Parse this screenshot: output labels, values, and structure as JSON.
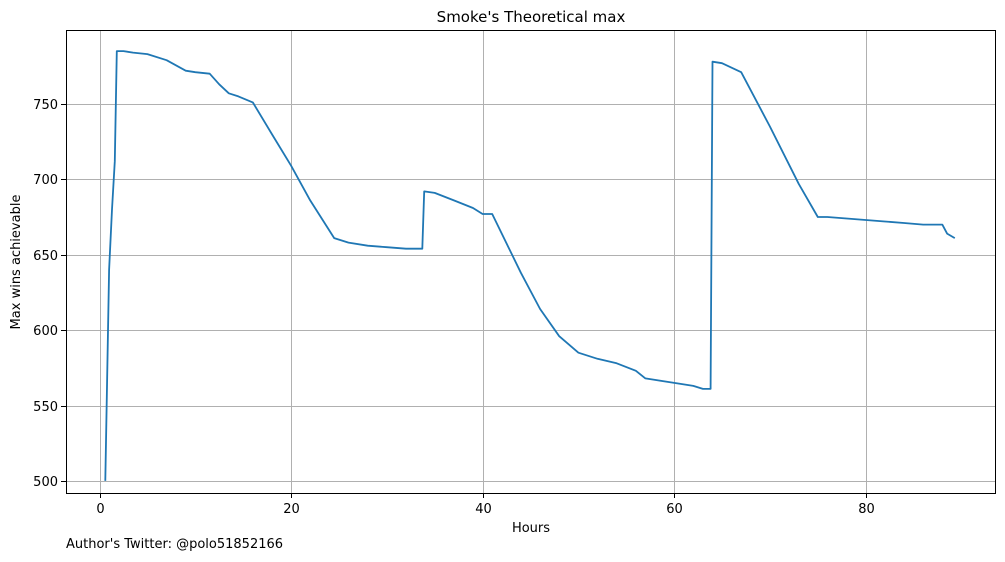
{
  "chart_data": {
    "type": "line",
    "title": "Smoke's Theoretical max",
    "xlabel": "Hours",
    "ylabel": "Max wins achievable",
    "xlim": [
      -3.5,
      93.5
    ],
    "ylim": [
      492,
      799
    ],
    "xticks": [
      0,
      20,
      40,
      60,
      80
    ],
    "yticks": [
      500,
      550,
      600,
      650,
      700,
      750
    ],
    "grid": true,
    "line_color": "#1f77b4",
    "grid_color": "#b0b0b0",
    "series": [
      {
        "points": [
          [
            0.6,
            500
          ],
          [
            1.0,
            640
          ],
          [
            1.3,
            680
          ],
          [
            1.6,
            712
          ],
          [
            1.8,
            785
          ],
          [
            2.5,
            785
          ],
          [
            3.5,
            784
          ],
          [
            5.0,
            783
          ],
          [
            7.0,
            779
          ],
          [
            9.0,
            772
          ],
          [
            10.0,
            771
          ],
          [
            11.5,
            770
          ],
          [
            12.5,
            763
          ],
          [
            13.5,
            757
          ],
          [
            14.5,
            755
          ],
          [
            16.0,
            751
          ],
          [
            18.0,
            730
          ],
          [
            20.0,
            709
          ],
          [
            22.0,
            686
          ],
          [
            24.5,
            661
          ],
          [
            26.0,
            658
          ],
          [
            28.0,
            656
          ],
          [
            30.0,
            655
          ],
          [
            32.0,
            654
          ],
          [
            33.7,
            654
          ],
          [
            33.9,
            692
          ],
          [
            35.0,
            691
          ],
          [
            37.0,
            686
          ],
          [
            39.0,
            681
          ],
          [
            40.0,
            677
          ],
          [
            41.0,
            677
          ],
          [
            44.0,
            638
          ],
          [
            46.0,
            614
          ],
          [
            48.0,
            596
          ],
          [
            50.0,
            585
          ],
          [
            52.0,
            581
          ],
          [
            54.0,
            578
          ],
          [
            56.0,
            573
          ],
          [
            57.0,
            568
          ],
          [
            58.0,
            567
          ],
          [
            60.0,
            565
          ],
          [
            62.0,
            563
          ],
          [
            63.0,
            561
          ],
          [
            63.8,
            561
          ],
          [
            64.0,
            778
          ],
          [
            65.0,
            777
          ],
          [
            67.0,
            771
          ],
          [
            70.0,
            735
          ],
          [
            73.0,
            697
          ],
          [
            75.0,
            675
          ],
          [
            76.0,
            675
          ],
          [
            78.0,
            674
          ],
          [
            80.0,
            673
          ],
          [
            82.0,
            672
          ],
          [
            84.0,
            671
          ],
          [
            86.0,
            670
          ],
          [
            88.0,
            670
          ],
          [
            88.5,
            664
          ],
          [
            89.3,
            661
          ]
        ]
      }
    ]
  },
  "footnote": "Author's Twitter: @polo51852166"
}
